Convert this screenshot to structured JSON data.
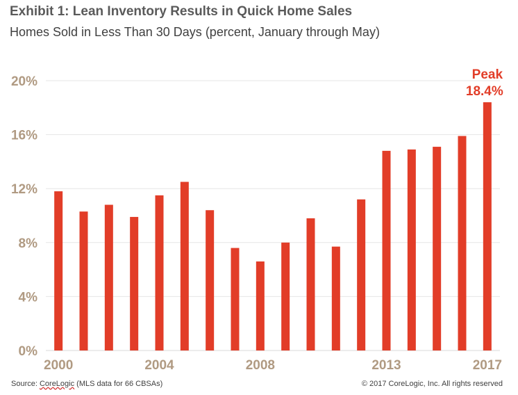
{
  "header": {
    "title": "Exhibit 1:  Lean Inventory Results in Quick Home Sales",
    "subtitle": "Homes Sold in Less Than 30 Days (percent, January through May)"
  },
  "footer": {
    "source_prefix": "Source: ",
    "source_org": "CoreLogic",
    "source_suffix": " (MLS data for 66 CBSAs)",
    "copyright": "© 2017 CoreLogic, Inc. All rights reserved"
  },
  "colors": {
    "bar": "#e23d28",
    "axis_labels": "#b09a82",
    "annotation": "#e23d28",
    "grid": "#e6e6e6"
  },
  "chart_data": {
    "type": "bar",
    "title": "Homes Sold in Less Than 30 Days (percent, January through May)",
    "xlabel": "",
    "ylabel": "",
    "categories": [
      "2000",
      "2001",
      "2002",
      "2003",
      "2004",
      "2005",
      "2006",
      "2007",
      "2008",
      "2009",
      "2010",
      "2011",
      "2012",
      "2013",
      "2014",
      "2015",
      "2016",
      "2017"
    ],
    "values": [
      11.8,
      10.3,
      10.8,
      9.9,
      11.5,
      12.5,
      10.4,
      7.6,
      6.6,
      8.0,
      9.8,
      7.7,
      11.2,
      14.8,
      14.9,
      15.1,
      15.9,
      18.4
    ],
    "x_tick_labels": [
      "2000",
      "",
      "",
      "",
      "2004",
      "",
      "",
      "",
      "2008",
      "",
      "",
      "",
      "",
      "2013",
      "",
      "",
      "",
      "2017"
    ],
    "y_ticks": [
      0,
      4,
      8,
      12,
      16,
      20
    ],
    "y_tick_labels": [
      "0%",
      "4%",
      "8%",
      "12%",
      "16%",
      "20%"
    ],
    "ylim": [
      0,
      20
    ],
    "grid": true,
    "annotation": {
      "label": "Peak",
      "value_label": "18.4%",
      "category": "2017"
    }
  }
}
